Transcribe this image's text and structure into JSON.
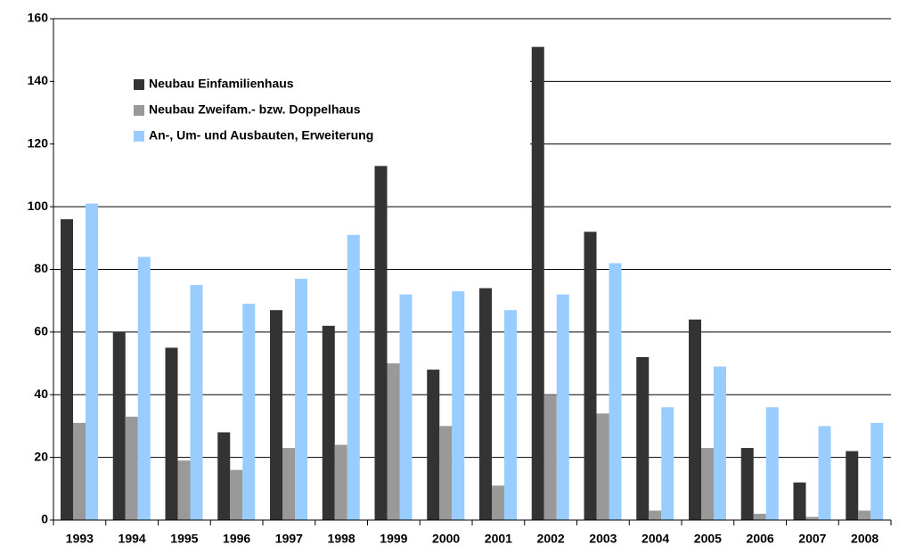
{
  "chart_data": {
    "type": "bar",
    "categories": [
      "1993",
      "1994",
      "1995",
      "1996",
      "1997",
      "1998",
      "1999",
      "2000",
      "2001",
      "2002",
      "2003",
      "2004",
      "2005",
      "2006",
      "2007",
      "2008"
    ],
    "series": [
      {
        "name": "Neubau Einfamilienhaus",
        "color": "#333333",
        "values": [
          96,
          60,
          55,
          28,
          67,
          62,
          113,
          48,
          74,
          151,
          92,
          52,
          64,
          23,
          12,
          22
        ]
      },
      {
        "name": "Neubau Zweifam.- bzw. Doppelhaus",
        "color": "#999999",
        "values": [
          31,
          33,
          19,
          16,
          23,
          24,
          50,
          30,
          11,
          40,
          34,
          3,
          23,
          2,
          1,
          3
        ]
      },
      {
        "name": "An-, Um- und Ausbauten, Erweiterung",
        "color": "#99ccff",
        "values": [
          101,
          84,
          75,
          69,
          77,
          91,
          72,
          73,
          67,
          72,
          82,
          36,
          49,
          36,
          30,
          31
        ]
      }
    ],
    "ylim": [
      0,
      160
    ],
    "yticks": [
      0,
      20,
      40,
      60,
      80,
      100,
      120,
      140,
      160
    ],
    "grid": true,
    "legend": "upper left"
  }
}
